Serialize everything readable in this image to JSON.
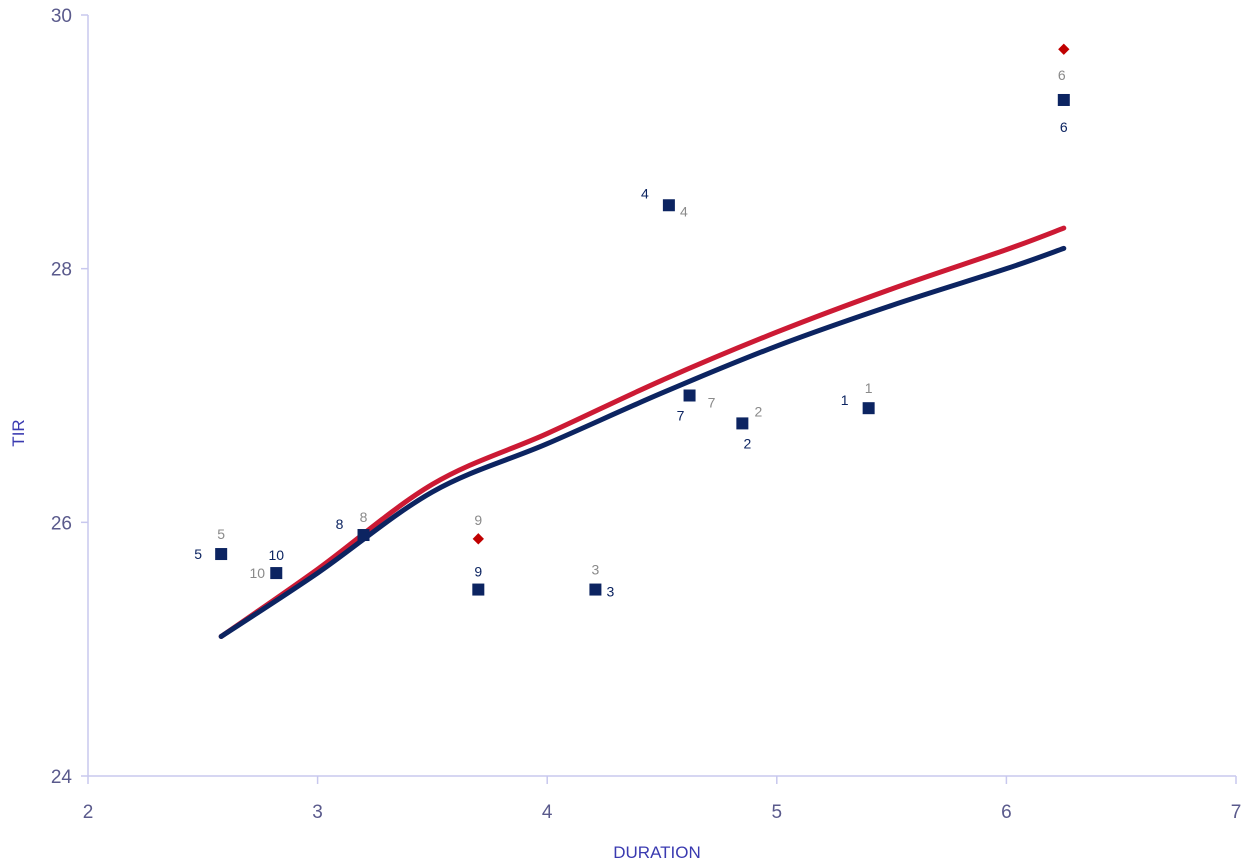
{
  "chart_data": {
    "type": "scatter",
    "title": "",
    "xlabel": "DURATION",
    "ylabel": "TIR",
    "xlim": [
      2,
      7
    ],
    "ylim": [
      24,
      30
    ],
    "x_ticks": [
      "2",
      "3",
      "4",
      "5",
      "6",
      "7"
    ],
    "y_ticks": [
      "24",
      "26",
      "28",
      "30"
    ],
    "grid": false,
    "legend": "none",
    "colors": {
      "series_a": "#0c2461",
      "series_b": "#8a8a8a",
      "red_curve": "#cc1a34",
      "navy_curve": "#0c2461",
      "red_marker": "#c00000",
      "axis": "#c8c8ee",
      "tick_text": "#5a5a8c",
      "axis_title": "#3a3ab0"
    },
    "series": [
      {
        "marker": "square",
        "color": "#0c2461",
        "points": [
          {
            "label": "1",
            "x": 5.4,
            "y": 26.9
          },
          {
            "label": "2",
            "x": 4.85,
            "y": 26.78
          },
          {
            "label": "3",
            "x": 4.21,
            "y": 25.47
          },
          {
            "label": "4",
            "x": 4.53,
            "y": 28.5
          },
          {
            "label": "5",
            "x": 2.58,
            "y": 25.75
          },
          {
            "label": "6",
            "x": 6.25,
            "y": 29.33
          },
          {
            "label": "7",
            "x": 4.62,
            "y": 27.0
          },
          {
            "label": "8",
            "x": 3.2,
            "y": 25.9
          },
          {
            "label": "9",
            "x": 3.7,
            "y": 25.47
          },
          {
            "label": "10",
            "x": 2.82,
            "y": 25.6
          }
        ]
      },
      {
        "marker": "label",
        "color": "#8a8a8a",
        "points": [
          {
            "label": "1",
            "x": 5.4,
            "y": 26.9
          },
          {
            "label": "2",
            "x": 4.85,
            "y": 26.78
          },
          {
            "label": "3",
            "x": 4.21,
            "y": 25.47
          },
          {
            "label": "4",
            "x": 4.53,
            "y": 28.5
          },
          {
            "label": "5",
            "x": 2.58,
            "y": 25.75
          },
          {
            "label": "6",
            "x": 6.25,
            "y": 29.73
          },
          {
            "label": "7",
            "x": 4.62,
            "y": 27.0
          },
          {
            "label": "8",
            "x": 3.2,
            "y": 25.9
          },
          {
            "label": "9",
            "x": 3.7,
            "y": 25.87
          },
          {
            "label": "10",
            "x": 2.82,
            "y": 25.6
          }
        ],
        "highlighted_diamonds": [
          {
            "label": "6",
            "x": 6.25,
            "y": 29.73
          },
          {
            "label": "9",
            "x": 3.7,
            "y": 25.87
          }
        ]
      }
    ],
    "curves": [
      {
        "color": "#cc1a34",
        "points": [
          [
            2.58,
            25.1
          ],
          [
            3.0,
            25.63
          ],
          [
            3.5,
            26.3
          ],
          [
            4.0,
            26.7
          ],
          [
            4.5,
            27.12
          ],
          [
            5.0,
            27.5
          ],
          [
            5.5,
            27.84
          ],
          [
            6.0,
            28.15
          ],
          [
            6.25,
            28.32
          ]
        ]
      },
      {
        "color": "#0c2461",
        "points": [
          [
            2.58,
            25.1
          ],
          [
            3.0,
            25.6
          ],
          [
            3.5,
            26.24
          ],
          [
            4.0,
            26.62
          ],
          [
            4.5,
            27.02
          ],
          [
            5.0,
            27.39
          ],
          [
            5.5,
            27.71
          ],
          [
            6.0,
            28.0
          ],
          [
            6.25,
            28.16
          ]
        ]
      }
    ]
  }
}
